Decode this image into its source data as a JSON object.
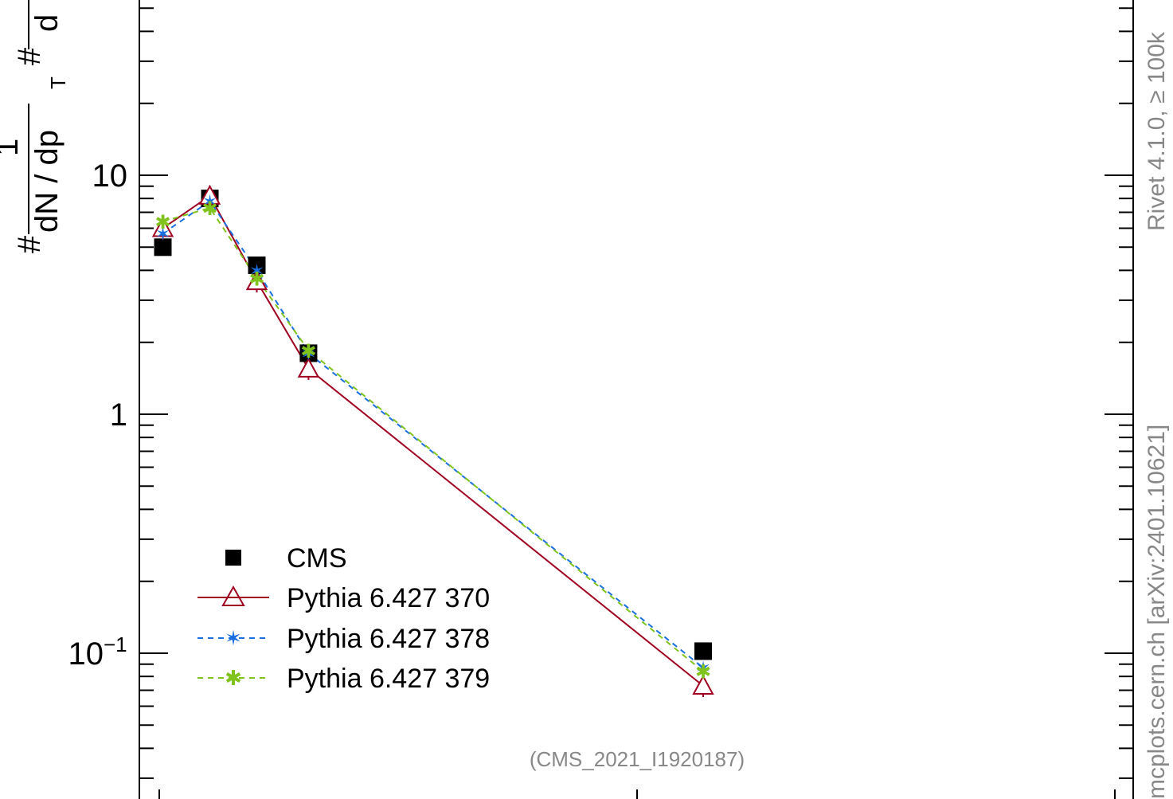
{
  "chart_data": {
    "type": "line",
    "yscale": "log",
    "ylim": [
      0.03,
      100
    ],
    "xlim": [
      0,
      100
    ],
    "ylabel": {
      "numerator_top": "1",
      "numerator_mid": "#",
      "denominator_left": "#",
      "denominator_text": "dN / dp",
      "denominator_sub": "T",
      "right_fragment": "d"
    },
    "yticks": [
      {
        "value": 10,
        "label": "10"
      },
      {
        "value": 1,
        "label": "1"
      },
      {
        "value": 0.1,
        "label": "10",
        "exp": "−1"
      }
    ],
    "x": [
      5,
      15,
      25,
      36,
      120
    ],
    "series": [
      {
        "name": "CMS",
        "values": [
          5.0,
          8.0,
          4.2,
          1.8,
          0.102
        ],
        "color": "#000000",
        "marker": "square",
        "line": "none"
      },
      {
        "name": "Pythia 6.427 370",
        "values": [
          6.0,
          8.2,
          3.6,
          1.55,
          0.073
        ],
        "color": "#a00020",
        "marker": "triangle",
        "line": "solid"
      },
      {
        "name": "Pythia 6.427 378",
        "values": [
          5.7,
          7.8,
          4.0,
          1.8,
          0.087
        ],
        "color": "#1a6fe0",
        "marker": "star",
        "line": "dashed"
      },
      {
        "name": "Pythia 6.427 379",
        "values": [
          6.4,
          7.3,
          3.7,
          1.85,
          0.084
        ],
        "color": "#7fc31c",
        "marker": "asterisk",
        "line": "dashed"
      }
    ],
    "annotation": "(CMS_2021_I1920187)",
    "side_text_top": "Rivet 4.1.0, ≥ 100k",
    "side_text_bottom": "mcplots.cern.ch [arXiv:2401.10621]",
    "legend_placement": "bottom-left"
  }
}
